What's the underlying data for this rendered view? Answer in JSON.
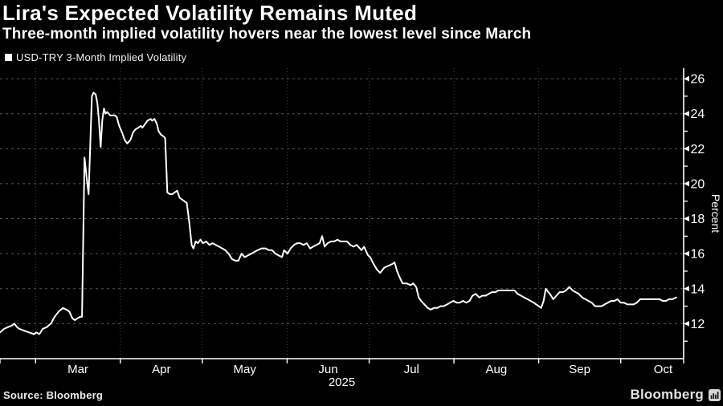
{
  "header": {
    "title": "Lira's Expected Volatility Remains Muted",
    "subtitle": "Three-month implied volatility hovers near the lowest level since March"
  },
  "legend": {
    "marker": "square",
    "marker_color": "#ffffff",
    "label": "USD-TRY 3-Month Implied Volatility"
  },
  "footer": {
    "source": "Source: Bloomberg",
    "logo_label": "Bloomberg",
    "logo_icon": "bar-chart-icon"
  },
  "colors": {
    "background": "#000000",
    "text": "#ffffff",
    "axis": "#ffffff",
    "line": "#ffffff",
    "grid_h": "#565656",
    "grid_v": "#454545",
    "logo": "#e2e2e2"
  },
  "chart_data": {
    "type": "line",
    "title": "USD-TRY 3-Month Implied Volatility",
    "ylabel": "Percent",
    "ylabel_side": "right",
    "ylim": [
      10,
      26.6
    ],
    "yticks_major": [
      12,
      14,
      16,
      18,
      20,
      22,
      24,
      26
    ],
    "yticks_minor": [
      11,
      13,
      15,
      17,
      19,
      21,
      23,
      25
    ],
    "grid": "dashed horizontal at major yticks, dotted vertical at month starts",
    "legend_position": "top-left above plot",
    "x_axis": {
      "note": "x unit = day offset from chart left edge; chart spans mid-February to late October 2025",
      "total_days": 250,
      "year_label": "2025",
      "next_month_boundary_day": 258,
      "month_ticks": [
        {
          "label": "Mar",
          "day": 13
        },
        {
          "label": "Apr",
          "day": 44
        },
        {
          "label": "May",
          "day": 74
        },
        {
          "label": "Jun",
          "day": 105
        },
        {
          "label": "Jul",
          "day": 135
        },
        {
          "label": "Aug",
          "day": 166
        },
        {
          "label": "Sep",
          "day": 197
        },
        {
          "label": "Oct",
          "day": 227
        }
      ]
    },
    "series": [
      {
        "name": "USD-TRY 3-Month Implied Volatility",
        "color": "#ffffff",
        "points": [
          [
            0,
            11.5
          ],
          [
            1.5,
            11.7
          ],
          [
            2.9,
            11.8
          ],
          [
            4.4,
            11.9
          ],
          [
            5.3,
            12.0
          ],
          [
            6.2,
            11.8
          ],
          [
            7.1,
            11.7
          ],
          [
            8.8,
            11.6
          ],
          [
            10.6,
            11.5
          ],
          [
            12.4,
            11.4
          ],
          [
            13.3,
            11.5
          ],
          [
            14.4,
            11.4
          ],
          [
            15.6,
            11.7
          ],
          [
            17.1,
            11.8
          ],
          [
            18.6,
            12.0
          ],
          [
            20,
            12.4
          ],
          [
            21.5,
            12.7
          ],
          [
            23,
            12.9
          ],
          [
            24.3,
            12.8
          ],
          [
            25.3,
            12.7
          ],
          [
            26.5,
            12.3
          ],
          [
            27.4,
            12.2
          ],
          [
            28.3,
            12.3
          ],
          [
            29.4,
            12.4
          ],
          [
            30,
            12.4
          ],
          [
            30.9,
            21.5
          ],
          [
            31.8,
            20.2
          ],
          [
            32.4,
            19.4
          ],
          [
            33.6,
            25.0
          ],
          [
            34.2,
            25.2
          ],
          [
            35,
            25.1
          ],
          [
            35.6,
            24.6
          ],
          [
            36.2,
            23.6
          ],
          [
            36.8,
            22.1
          ],
          [
            37.4,
            23.6
          ],
          [
            38,
            24.3
          ],
          [
            38.6,
            24.0
          ],
          [
            39.2,
            24.1
          ],
          [
            40.3,
            23.9
          ],
          [
            41.2,
            23.9
          ],
          [
            42.1,
            23.9
          ],
          [
            42.7,
            23.8
          ],
          [
            43.6,
            23.3
          ],
          [
            44.7,
            22.9
          ],
          [
            45.6,
            22.5
          ],
          [
            46.5,
            22.3
          ],
          [
            47.7,
            22.5
          ],
          [
            48.6,
            22.9
          ],
          [
            49.5,
            23.1
          ],
          [
            50.6,
            23.2
          ],
          [
            51.5,
            23.3
          ],
          [
            52.1,
            23.2
          ],
          [
            53,
            23.4
          ],
          [
            53.9,
            23.6
          ],
          [
            55.1,
            23.7
          ],
          [
            55.6,
            23.6
          ],
          [
            56.5,
            23.7
          ],
          [
            57.4,
            23.4
          ],
          [
            58,
            23.0
          ],
          [
            58.9,
            22.8
          ],
          [
            59.8,
            22.7
          ],
          [
            60.4,
            22.6
          ],
          [
            61.2,
            19.5
          ],
          [
            62.1,
            19.4
          ],
          [
            63,
            19.4
          ],
          [
            63.9,
            19.5
          ],
          [
            64.8,
            19.6
          ],
          [
            65.7,
            19.2
          ],
          [
            66.5,
            19.1
          ],
          [
            67.4,
            19.0
          ],
          [
            68.3,
            18.9
          ],
          [
            69.2,
            17.8
          ],
          [
            70.1,
            16.5
          ],
          [
            70.7,
            16.3
          ],
          [
            71.6,
            16.7
          ],
          [
            72.4,
            16.6
          ],
          [
            73.3,
            16.8
          ],
          [
            74.2,
            16.6
          ],
          [
            75.4,
            16.7
          ],
          [
            76.6,
            16.5
          ],
          [
            77.7,
            16.6
          ],
          [
            78.9,
            16.5
          ],
          [
            80.1,
            16.4
          ],
          [
            81.3,
            16.3
          ],
          [
            82.4,
            16.2
          ],
          [
            83.6,
            16.0
          ],
          [
            84.8,
            15.7
          ],
          [
            86,
            15.6
          ],
          [
            87.2,
            15.6
          ],
          [
            88.3,
            16.0
          ],
          [
            89.5,
            15.8
          ],
          [
            90.7,
            15.9
          ],
          [
            91.9,
            16.0
          ],
          [
            93,
            16.1
          ],
          [
            94.2,
            16.2
          ],
          [
            95.7,
            16.3
          ],
          [
            97.2,
            16.3
          ],
          [
            98.3,
            16.2
          ],
          [
            99.5,
            16.2
          ],
          [
            100.7,
            16.0
          ],
          [
            101.9,
            15.9
          ],
          [
            103.1,
            15.8
          ],
          [
            103.9,
            16.2
          ],
          [
            105.1,
            16.0
          ],
          [
            106.3,
            16.3
          ],
          [
            107.5,
            16.5
          ],
          [
            108.7,
            16.6
          ],
          [
            109.8,
            16.6
          ],
          [
            111,
            16.5
          ],
          [
            112.2,
            16.6
          ],
          [
            113.4,
            16.3
          ],
          [
            114.5,
            16.4
          ],
          [
            115.7,
            16.5
          ],
          [
            116.9,
            16.6
          ],
          [
            117.8,
            17.0
          ],
          [
            118.7,
            16.4
          ],
          [
            119.8,
            16.6
          ],
          [
            121,
            16.7
          ],
          [
            122.2,
            16.7
          ],
          [
            123.4,
            16.8
          ],
          [
            124.5,
            16.7
          ],
          [
            125.7,
            16.7
          ],
          [
            126.9,
            16.7
          ],
          [
            128.1,
            16.5
          ],
          [
            129.3,
            16.4
          ],
          [
            130.4,
            16.5
          ],
          [
            131.6,
            16.3
          ],
          [
            132.2,
            16.2
          ],
          [
            133.1,
            16.4
          ],
          [
            134.6,
            15.9
          ],
          [
            135.4,
            15.8
          ],
          [
            136.3,
            15.5
          ],
          [
            137.8,
            15.1
          ],
          [
            139,
            14.9
          ],
          [
            140.5,
            15.2
          ],
          [
            141.9,
            15.3
          ],
          [
            143.4,
            15.4
          ],
          [
            144.3,
            15.5
          ],
          [
            145.2,
            15.0
          ],
          [
            146.3,
            14.6
          ],
          [
            147.2,
            14.3
          ],
          [
            148.7,
            14.3
          ],
          [
            150.2,
            14.2
          ],
          [
            151.1,
            14.3
          ],
          [
            152.2,
            14.1
          ],
          [
            153.1,
            13.5
          ],
          [
            154,
            13.3
          ],
          [
            155.2,
            13.1
          ],
          [
            156.4,
            12.9
          ],
          [
            157.5,
            12.8
          ],
          [
            158.7,
            12.9
          ],
          [
            159.9,
            12.9
          ],
          [
            161.1,
            13.0
          ],
          [
            162.2,
            13.0
          ],
          [
            163.5,
            13.1
          ],
          [
            164.6,
            13.2
          ],
          [
            165.8,
            13.3
          ],
          [
            167,
            13.2
          ],
          [
            168.1,
            13.2
          ],
          [
            169.3,
            13.3
          ],
          [
            170.5,
            13.2
          ],
          [
            171.7,
            13.3
          ],
          [
            172.8,
            13.6
          ],
          [
            174,
            13.7
          ],
          [
            175.2,
            13.5
          ],
          [
            176.4,
            13.6
          ],
          [
            177.6,
            13.6
          ],
          [
            178.7,
            13.7
          ],
          [
            179.9,
            13.8
          ],
          [
            181.1,
            13.8
          ],
          [
            182.3,
            13.9
          ],
          [
            183.4,
            13.9
          ],
          [
            185.8,
            13.9
          ],
          [
            188.2,
            13.9
          ],
          [
            189.3,
            13.7
          ],
          [
            190.5,
            13.6
          ],
          [
            191.7,
            13.5
          ],
          [
            192.9,
            13.4
          ],
          [
            194,
            13.3
          ],
          [
            195.2,
            13.2
          ],
          [
            196.1,
            13.1
          ],
          [
            197,
            13.0
          ],
          [
            197.9,
            12.9
          ],
          [
            198.8,
            13.3
          ],
          [
            199.6,
            14.0
          ],
          [
            200.5,
            13.8
          ],
          [
            201.1,
            13.7
          ],
          [
            202.3,
            13.4
          ],
          [
            203.5,
            13.6
          ],
          [
            204.6,
            13.8
          ],
          [
            205.8,
            13.8
          ],
          [
            207,
            13.9
          ],
          [
            208.2,
            14.1
          ],
          [
            209.4,
            13.9
          ],
          [
            210.5,
            13.8
          ],
          [
            211.7,
            13.7
          ],
          [
            212.9,
            13.5
          ],
          [
            214.1,
            13.4
          ],
          [
            215.2,
            13.3
          ],
          [
            216.4,
            13.2
          ],
          [
            217.6,
            13.0
          ],
          [
            218.8,
            13.0
          ],
          [
            220,
            13.0
          ],
          [
            221.1,
            13.1
          ],
          [
            222.3,
            13.2
          ],
          [
            223.5,
            13.3
          ],
          [
            224.7,
            13.3
          ],
          [
            225.8,
            13.4
          ],
          [
            227,
            13.2
          ],
          [
            228.2,
            13.2
          ],
          [
            229.4,
            13.1
          ],
          [
            230.6,
            13.1
          ],
          [
            231.7,
            13.1
          ],
          [
            232.9,
            13.2
          ],
          [
            234.1,
            13.4
          ],
          [
            236,
            13.4
          ],
          [
            238,
            13.4
          ],
          [
            240,
            13.4
          ],
          [
            241.2,
            13.4
          ],
          [
            242.3,
            13.3
          ],
          [
            243.5,
            13.3
          ],
          [
            244.7,
            13.4
          ],
          [
            245.9,
            13.4
          ],
          [
            247.3,
            13.5
          ]
        ]
      }
    ]
  }
}
